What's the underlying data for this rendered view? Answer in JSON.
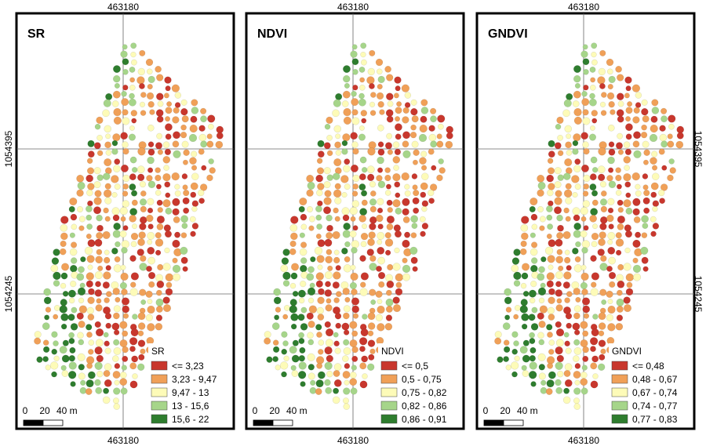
{
  "panels": [
    {
      "title": "SR",
      "legend_title": "SR",
      "classes": [
        {
          "label": "<= 3,23",
          "color": "#c8372d"
        },
        {
          "label": "3,23 - 9,47",
          "color": "#f0a058"
        },
        {
          "label": "9,47 - 13",
          "color": "#fdfbb8"
        },
        {
          "label": "13 - 15,6",
          "color": "#a6d58a"
        },
        {
          "label": "15,6 - 22",
          "color": "#2e7d2e"
        }
      ]
    },
    {
      "title": "NDVI",
      "legend_title": "NDVI",
      "classes": [
        {
          "label": "<= 0,5",
          "color": "#c8372d"
        },
        {
          "label": "0,5 - 0,75",
          "color": "#f0a058"
        },
        {
          "label": "0,75 - 0,82",
          "color": "#fdfbb8"
        },
        {
          "label": "0,82 - 0,86",
          "color": "#a6d58a"
        },
        {
          "label": "0,86 - 0,91",
          "color": "#2e7d2e"
        }
      ]
    },
    {
      "title": "GNDVI",
      "legend_title": "GNDVI",
      "classes": [
        {
          "label": "<= 0,48",
          "color": "#c8372d"
        },
        {
          "label": "0,48 - 0,67",
          "color": "#f0a058"
        },
        {
          "label": "0,67 - 0,74",
          "color": "#fdfbb8"
        },
        {
          "label": "0,74 - 0,77",
          "color": "#a6d58a"
        },
        {
          "label": "0,77 - 0,83",
          "color": "#2e7d2e"
        }
      ]
    }
  ],
  "grid_labels": {
    "x_top": "463180",
    "x_bottom": "463180",
    "y_upper": "1054395",
    "y_lower": "1054245"
  },
  "scale_bar": {
    "labels": [
      "0",
      "20",
      "40 m"
    ]
  }
}
